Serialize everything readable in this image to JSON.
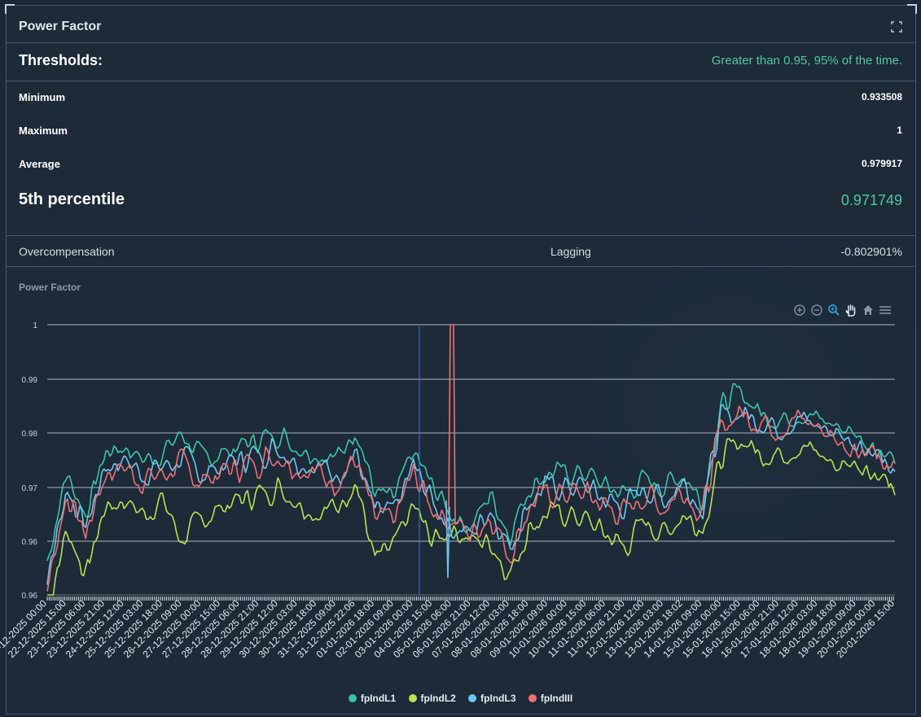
{
  "header": {
    "title": "Power Factor"
  },
  "thresholds": {
    "label": "Thresholds:",
    "value": "Greater than 0.95, 95% of the time."
  },
  "stats": [
    {
      "key": "Minimum",
      "value": "0.933508"
    },
    {
      "key": "Maximum",
      "value": "1"
    },
    {
      "key": "Average",
      "value": "0.979917"
    }
  ],
  "percentile": {
    "key": "5th percentile",
    "value": "0.971749"
  },
  "overcomp": {
    "label": "Overcompensation",
    "state": "Lagging",
    "value": "-0.802901%"
  },
  "colors": {
    "accent": "#4fc7a7",
    "L1": "#3cc4a9",
    "L2": "#b6e350",
    "L3": "#6ec6f0",
    "III": "#ef6f74"
  },
  "toolbar_icons": [
    "zoom-in-icon",
    "zoom-out-icon",
    "selection-zoom-icon",
    "pan-icon",
    "home-icon",
    "menu-icon"
  ],
  "chart_data": {
    "type": "line",
    "title": "Power Factor",
    "ylim": [
      0.96,
      1
    ],
    "yticks": [
      "1",
      "0.99",
      "0.98",
      "0.97",
      "0.96",
      "0.96"
    ],
    "grid": true,
    "legend": "bottom-center",
    "x_labels": [
      "22-12-2025 00:00",
      "22-12-2025 15:00",
      "23-12-2025 06:00",
      "23-12-2025 21:00",
      "24-12-2025 12:00",
      "25-12-2025 03:00",
      "25-12-2025 18:00",
      "26-12-2025 09:00",
      "27-12-2025 00:00",
      "27-12-2025 15:00",
      "28-12-2025 06:00",
      "28-12-2025 21:00",
      "29-12-2025 12:00",
      "30-12-2025 03:00",
      "30-12-2025 18:00",
      "31-12-2025 09:00",
      "31-12-2025 22:06",
      "01-01-2026 18:00",
      "02-01-2026 09:00",
      "03-01-2026 00:00",
      "04-01-2026 15:00",
      "05-01-2026 06:00",
      "06-01-2026 21:00",
      "07-01-2026 12:00",
      "08-01-2026 03:00",
      "08-01-2026 18:00",
      "09-01-2026 09:00",
      "10-01-2026 00:00",
      "10-01-2026 15:00",
      "11-01-2026 06:00",
      "11-01-2026 21:00",
      "12-01-2026 12:00",
      "13-01-2026 03:00",
      "13-01-2026 18:02",
      "14-01-2026 09:00",
      "15-01-2026 00:00",
      "15-01-2026 15:00",
      "16-01-2026 06:00",
      "16-01-2026 21:00",
      "17-01-2026 12:00",
      "18-01-2026 03:00",
      "18-01-2026 18:00",
      "19-01-2026 09:00",
      "20-01-2026 00:00",
      "20-01-2026 15:00"
    ],
    "series": [
      {
        "name": "fpIndL1",
        "color": "#3cc4a9"
      },
      {
        "name": "fpIndL2",
        "color": "#b6e350"
      },
      {
        "name": "fpIndL3",
        "color": "#6ec6f0"
      },
      {
        "name": "fpIndIII",
        "color": "#ef6f74"
      }
    ],
    "anchors": {
      "fpIndL1": [
        0.965,
        0.978,
        0.972,
        0.981,
        0.982,
        0.98,
        0.981,
        0.984,
        0.98,
        0.981,
        0.982,
        0.983,
        0.984,
        0.982,
        0.981,
        0.98,
        0.985,
        0.975,
        0.974,
        0.981,
        0.976,
        0.972,
        0.97,
        0.975,
        0.969,
        0.976,
        0.978,
        0.978,
        0.978,
        0.976,
        0.975,
        0.977,
        0.976,
        0.978,
        0.974,
        0.988,
        0.99,
        0.987,
        0.986,
        0.987,
        0.986,
        0.985,
        0.984,
        0.982,
        0.98
      ],
      "fpIndL2": [
        0.956,
        0.97,
        0.963,
        0.973,
        0.974,
        0.972,
        0.974,
        0.968,
        0.971,
        0.973,
        0.974,
        0.975,
        0.976,
        0.974,
        0.972,
        0.973,
        0.977,
        0.965,
        0.967,
        0.973,
        0.968,
        0.97,
        0.968,
        0.968,
        0.963,
        0.97,
        0.972,
        0.972,
        0.971,
        0.969,
        0.967,
        0.971,
        0.969,
        0.972,
        0.97,
        0.98,
        0.983,
        0.981,
        0.981,
        0.982,
        0.981,
        0.979,
        0.98,
        0.978,
        0.976
      ],
      "fpIndL3": [
        0.962,
        0.976,
        0.97,
        0.979,
        0.98,
        0.978,
        0.979,
        0.98,
        0.978,
        0.979,
        0.98,
        0.981,
        0.982,
        0.98,
        0.979,
        0.978,
        0.981,
        0.972,
        0.972,
        0.979,
        0.974,
        0.97,
        0.969,
        0.973,
        0.967,
        0.974,
        0.976,
        0.976,
        0.976,
        0.974,
        0.973,
        0.976,
        0.974,
        0.977,
        0.973,
        0.986,
        0.987,
        0.986,
        0.985,
        0.986,
        0.985,
        0.984,
        0.983,
        0.981,
        0.979
      ],
      "fpIndIII": [
        0.961,
        0.975,
        0.969,
        0.978,
        0.979,
        0.977,
        0.978,
        0.979,
        0.977,
        0.978,
        0.979,
        0.98,
        0.981,
        0.979,
        0.978,
        0.977,
        0.98,
        0.971,
        0.971,
        0.978,
        0.973,
        0.971,
        0.969,
        0.972,
        0.966,
        0.973,
        0.975,
        0.975,
        0.975,
        0.973,
        0.972,
        0.975,
        0.973,
        0.976,
        0.972,
        0.985,
        0.987,
        0.986,
        0.985,
        0.986,
        0.985,
        0.983,
        0.982,
        0.981,
        0.979
      ]
    }
  },
  "legend_labels": [
    "fpIndL1",
    "fpIndL2",
    "fpIndL3",
    "fpIndIII"
  ]
}
